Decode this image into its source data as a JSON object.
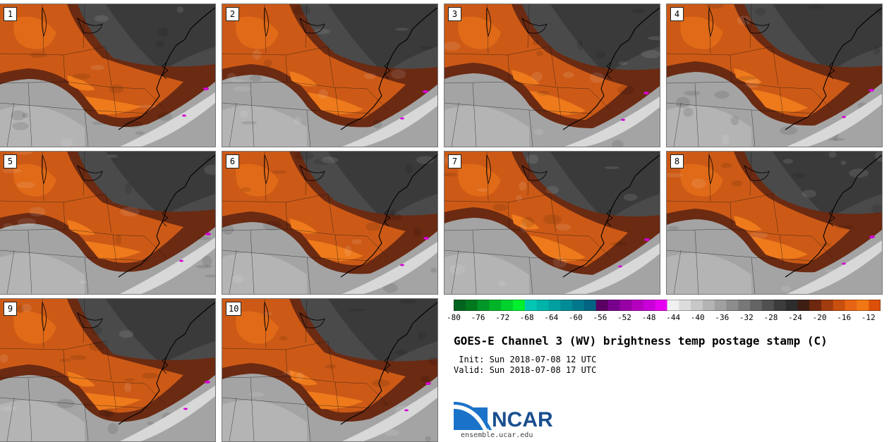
{
  "panels": [
    {
      "label": "1",
      "shift": 6,
      "tilt": 0
    },
    {
      "label": "2",
      "shift": 0,
      "tilt": 4
    },
    {
      "label": "3",
      "shift": -2,
      "tilt": 6
    },
    {
      "label": "4",
      "shift": -4,
      "tilt": 2
    },
    {
      "label": "5",
      "shift": 2,
      "tilt": -3
    },
    {
      "label": "6",
      "shift": 0,
      "tilt": 3
    },
    {
      "label": "7",
      "shift": -6,
      "tilt": 5
    },
    {
      "label": "8",
      "shift": -4,
      "tilt": 1
    },
    {
      "label": "9",
      "shift": 8,
      "tilt": -2
    },
    {
      "label": "10",
      "shift": 6,
      "tilt": 0
    }
  ],
  "colorbar": {
    "ticks": [
      "-80",
      "-76",
      "-72",
      "-68",
      "-64",
      "-60",
      "-56",
      "-52",
      "-48",
      "-44",
      "-40",
      "-36",
      "-32",
      "-28",
      "-24",
      "-20",
      "-16",
      "-12"
    ],
    "min": -80,
    "max": -10,
    "step": 2,
    "colors": [
      "#00641e",
      "#00781e",
      "#009628",
      "#00b428",
      "#00d22d",
      "#00f02d",
      "#00c8b4",
      "#00b4aa",
      "#00a0a0",
      "#008c96",
      "#00788c",
      "#006482",
      "#5a0064",
      "#78008c",
      "#9600a5",
      "#b400be",
      "#c800d7",
      "#e600f0",
      "#f0f0f0",
      "#dcdcdc",
      "#c8c8c8",
      "#b4b4b4",
      "#a0a0a0",
      "#8c8c8c",
      "#787878",
      "#646464",
      "#505050",
      "#3c3c3c",
      "#2d2d2d",
      "#3c1e14",
      "#6e280f",
      "#a03c0f",
      "#c8500f",
      "#e66414",
      "#f07814",
      "#dc500a"
    ]
  },
  "title": "GOES-E Channel 3 (WV) brightness temp postage stamp (C)",
  "init": " Init: Sun 2018-07-08 12 UTC",
  "valid": "Valid: Sun 2018-07-08 17 UTC",
  "logo": {
    "text": "NCAR",
    "url": "ensemble.ucar.edu"
  }
}
